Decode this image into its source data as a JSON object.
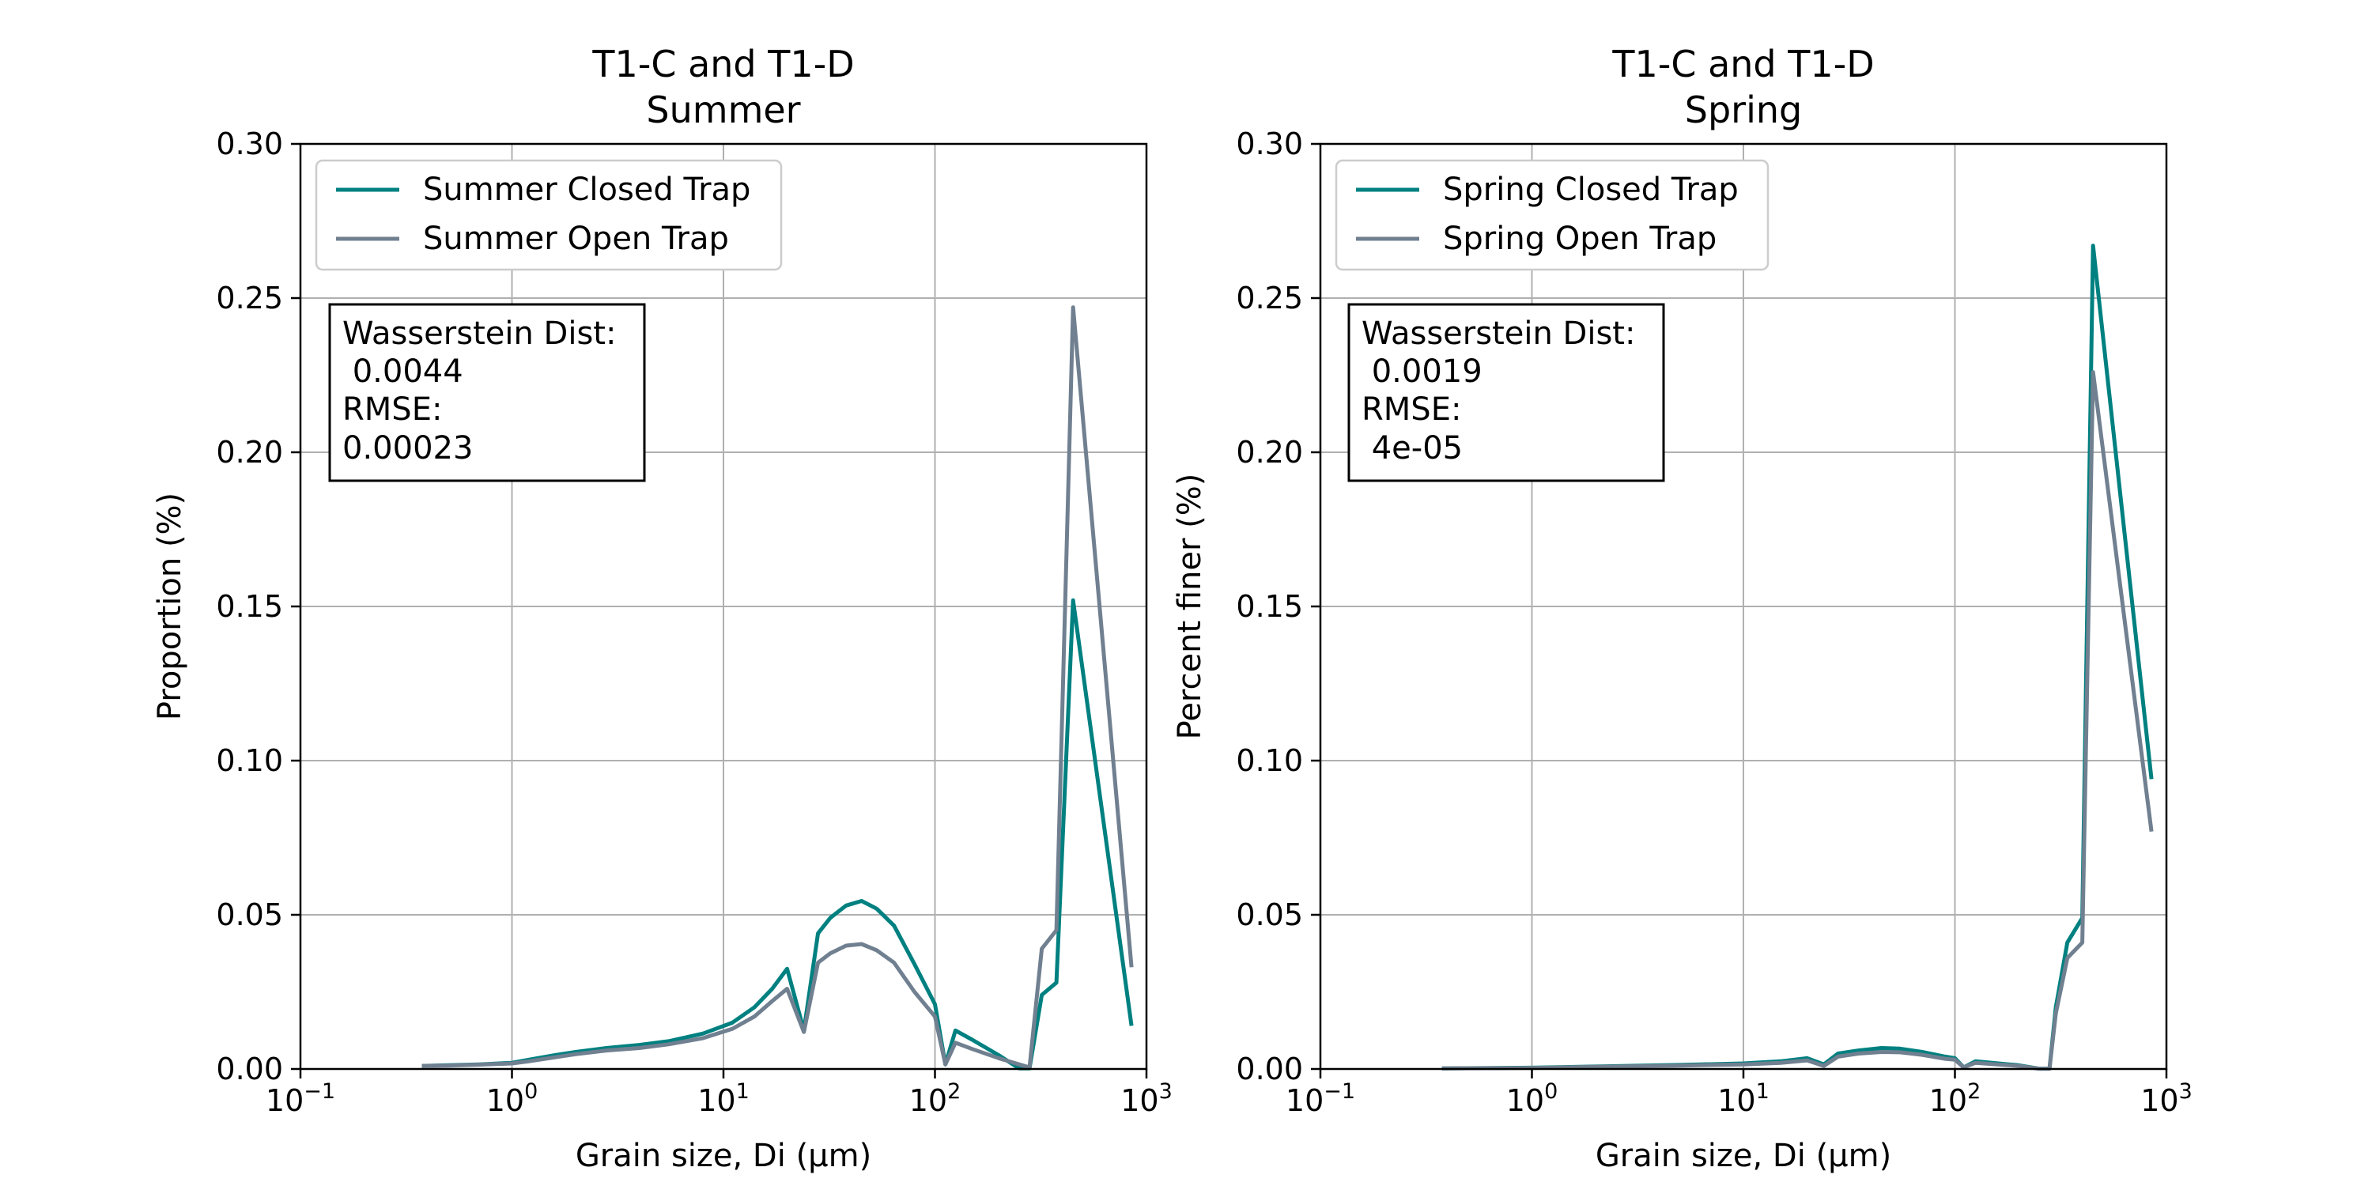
{
  "chart_data": [
    {
      "type": "line",
      "title_line1": "T1-C and T1-D",
      "title_line2": "Summer",
      "xlabel": "Grain size, Di (μm)",
      "ylabel": "Proportion (%)",
      "xscale": "log",
      "xlim": [
        0.1,
        1000
      ],
      "ylim": [
        0,
        0.3
      ],
      "grid": true,
      "legend_placement": "upper-left",
      "x_ticks": [
        "10",
        "10",
        "10",
        "10",
        "10"
      ],
      "x_tick_exponents": [
        "−1",
        "0",
        "1",
        "2",
        "3"
      ],
      "y_ticks": [
        "0.00",
        "0.05",
        "0.10",
        "0.15",
        "0.20",
        "0.25",
        "0.30"
      ],
      "annotation": [
        "Wasserstein Dist:",
        " 0.0044",
        "RMSE:",
        "0.00023"
      ],
      "series": [
        {
          "name": "Summer Closed Trap",
          "color": "#008080",
          "x": [
            0.375,
            0.5,
            0.7,
            1.0,
            1.2,
            1.6,
            2.0,
            2.8,
            4.0,
            5.5,
            8.0,
            11,
            14,
            17,
            20,
            24,
            28,
            32,
            38,
            45,
            53,
            64,
            80,
            100,
            112,
            125,
            150,
            200,
            250,
            280,
            320,
            375,
            450,
            850
          ],
          "values": [
            0.001,
            0.0012,
            0.0015,
            0.002,
            0.003,
            0.0045,
            0.0055,
            0.0068,
            0.0078,
            0.009,
            0.0115,
            0.015,
            0.02,
            0.026,
            0.0325,
            0.0125,
            0.044,
            0.049,
            0.053,
            0.0545,
            0.052,
            0.0465,
            0.034,
            0.021,
            0.0015,
            0.0125,
            0.0095,
            0.0045,
            0.0002,
            0.0002,
            0.024,
            0.028,
            0.152,
            0.014
          ]
        },
        {
          "name": "Summer Open Trap",
          "color": "#708090",
          "x": [
            0.375,
            0.5,
            0.7,
            1.0,
            1.2,
            1.6,
            2.0,
            2.8,
            4.0,
            5.5,
            8.0,
            11,
            14,
            17,
            20,
            24,
            28,
            32,
            38,
            45,
            53,
            64,
            80,
            100,
            112,
            125,
            150,
            200,
            250,
            280,
            320,
            375,
            450,
            850
          ],
          "values": [
            0.001,
            0.0011,
            0.0014,
            0.0018,
            0.0025,
            0.0038,
            0.0048,
            0.006,
            0.0068,
            0.008,
            0.01,
            0.013,
            0.017,
            0.022,
            0.026,
            0.012,
            0.0345,
            0.0375,
            0.04,
            0.0405,
            0.0385,
            0.0345,
            0.025,
            0.017,
            0.0015,
            0.0085,
            0.0065,
            0.0035,
            0.0015,
            0.0005,
            0.039,
            0.045,
            0.247,
            0.033
          ]
        }
      ]
    },
    {
      "type": "line",
      "title_line1": "T1-C and T1-D",
      "title_line2": "Spring",
      "xlabel": "Grain size, Di (μm)",
      "ylabel": "Percent finer (%)",
      "xscale": "log",
      "xlim": [
        0.1,
        1000
      ],
      "ylim": [
        0,
        0.3
      ],
      "grid": true,
      "legend_placement": "upper-left",
      "x_ticks": [
        "10",
        "10",
        "10",
        "10",
        "10"
      ],
      "x_tick_exponents": [
        "−1",
        "0",
        "1",
        "2",
        "3"
      ],
      "y_ticks": [
        "0.00",
        "0.05",
        "0.10",
        "0.15",
        "0.20",
        "0.25",
        "0.30"
      ],
      "annotation": [
        "Wasserstein Dist:",
        " 0.0019",
        "RMSE:",
        " 4e-05"
      ],
      "series": [
        {
          "name": "Spring Closed Trap",
          "color": "#008080",
          "x": [
            0.375,
            1.0,
            2.0,
            5.0,
            10,
            15,
            20,
            24,
            28,
            35,
            45,
            55,
            70,
            90,
            100,
            110,
            125,
            200,
            250,
            280,
            300,
            340,
            400,
            450,
            850
          ],
          "values": [
            0.0002,
            0.0004,
            0.0008,
            0.0013,
            0.0018,
            0.0025,
            0.0035,
            0.0015,
            0.005,
            0.006,
            0.0068,
            0.0066,
            0.0055,
            0.004,
            0.0035,
            0.0005,
            0.0025,
            0.0012,
            0.0001,
            0.0001,
            0.02,
            0.041,
            0.049,
            0.267,
            0.094
          ]
        },
        {
          "name": "Spring Open Trap",
          "color": "#708090",
          "x": [
            0.375,
            1.0,
            2.0,
            5.0,
            10,
            15,
            20,
            24,
            28,
            35,
            45,
            55,
            70,
            90,
            100,
            110,
            125,
            200,
            250,
            280,
            300,
            340,
            400,
            450,
            850
          ],
          "values": [
            0.0002,
            0.0003,
            0.0007,
            0.0011,
            0.0015,
            0.002,
            0.0028,
            0.001,
            0.004,
            0.005,
            0.0055,
            0.0054,
            0.0046,
            0.0033,
            0.003,
            0.0005,
            0.002,
            0.001,
            0.0001,
            0.0001,
            0.018,
            0.036,
            0.041,
            0.226,
            0.077
          ]
        }
      ]
    }
  ]
}
